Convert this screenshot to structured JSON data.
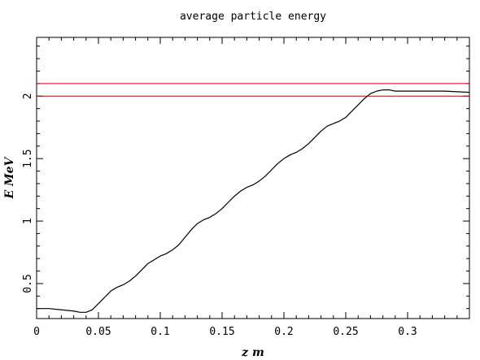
{
  "chart_data": {
    "type": "line",
    "title": "average particle energy",
    "xlabel": "z m",
    "ylabel": "E MeV",
    "xlim": [
      0,
      0.35
    ],
    "ylim": [
      0.22,
      2.47
    ],
    "xticks": [
      0,
      0.05,
      0.1,
      0.15,
      0.2,
      0.25,
      0.3
    ],
    "xtick_labels": [
      "0",
      "0.05",
      "0.1",
      "0.15",
      "0.2",
      "0.25",
      "0.3"
    ],
    "yticks": [
      0.5,
      1,
      1.5,
      2
    ],
    "ytick_labels": [
      "0.5",
      "1",
      "1.5",
      "2"
    ],
    "grid": false,
    "hlines": [
      {
        "y": 2.1,
        "color": "#cc0000"
      },
      {
        "y": 2.0,
        "color": "#cc0000"
      }
    ],
    "series": [
      {
        "color": "#000000",
        "x": [
          0,
          0.01,
          0.02,
          0.03,
          0.035,
          0.04,
          0.045,
          0.05,
          0.055,
          0.06,
          0.065,
          0.07,
          0.075,
          0.08,
          0.085,
          0.09,
          0.095,
          0.1,
          0.105,
          0.11,
          0.115,
          0.12,
          0.125,
          0.13,
          0.135,
          0.14,
          0.145,
          0.15,
          0.155,
          0.16,
          0.165,
          0.17,
          0.175,
          0.18,
          0.185,
          0.19,
          0.195,
          0.2,
          0.205,
          0.21,
          0.215,
          0.22,
          0.225,
          0.23,
          0.235,
          0.24,
          0.245,
          0.25,
          0.255,
          0.26,
          0.265,
          0.27,
          0.275,
          0.28,
          0.285,
          0.29,
          0.3,
          0.31,
          0.33,
          0.35
        ],
        "y": [
          0.3,
          0.3,
          0.29,
          0.28,
          0.27,
          0.27,
          0.29,
          0.34,
          0.39,
          0.44,
          0.47,
          0.49,
          0.52,
          0.56,
          0.61,
          0.66,
          0.69,
          0.72,
          0.74,
          0.77,
          0.81,
          0.87,
          0.93,
          0.98,
          1.01,
          1.03,
          1.06,
          1.1,
          1.15,
          1.2,
          1.24,
          1.27,
          1.29,
          1.32,
          1.36,
          1.41,
          1.46,
          1.5,
          1.53,
          1.55,
          1.58,
          1.62,
          1.67,
          1.72,
          1.76,
          1.78,
          1.8,
          1.83,
          1.88,
          1.93,
          1.98,
          2.02,
          2.04,
          2.05,
          2.05,
          2.04,
          2.04,
          2.04,
          2.04,
          2.03
        ]
      }
    ]
  }
}
